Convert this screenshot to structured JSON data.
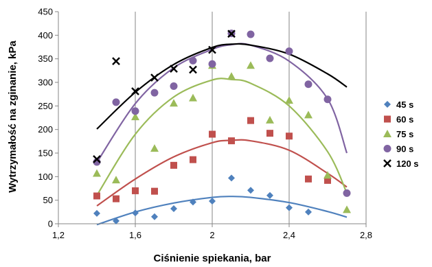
{
  "chart_data": {
    "type": "scatter",
    "xlabel": "Ciśnienie spiekania, bar",
    "ylabel": "Wytrzymałość na zginanie, kPa",
    "xlim": [
      1.2,
      2.8
    ],
    "ylim": [
      0,
      450
    ],
    "x_ticks": [
      "1,2",
      "1,6",
      "2",
      "2,4",
      "2,8"
    ],
    "x_tick_values": [
      1.2,
      1.6,
      2.0,
      2.4,
      2.8
    ],
    "y_ticks": [
      "0",
      "50",
      "100",
      "150",
      "200",
      "250",
      "300",
      "350",
      "400",
      "450"
    ],
    "y_tick_values": [
      0,
      50,
      100,
      150,
      200,
      250,
      300,
      350,
      400,
      450
    ],
    "grid": "vertical",
    "legend_position": "right",
    "series": [
      {
        "name": "45 s",
        "color": "#4f81bd",
        "marker": "diamond",
        "points": [
          [
            1.4,
            22
          ],
          [
            1.5,
            6
          ],
          [
            1.6,
            23
          ],
          [
            1.7,
            15
          ],
          [
            1.8,
            32
          ],
          [
            1.9,
            46
          ],
          [
            2.0,
            48
          ],
          [
            2.1,
            97
          ],
          [
            2.2,
            71
          ],
          [
            2.3,
            60
          ],
          [
            2.4,
            34
          ],
          [
            2.5,
            25
          ],
          [
            2.7,
            65
          ]
        ],
        "trend": {
          "x_range": [
            1.4,
            2.7
          ],
          "points": [
            [
              1.4,
              -2
            ],
            [
              1.6,
              25
            ],
            [
              1.8,
              44
            ],
            [
              2.0,
              56
            ],
            [
              2.1,
              58
            ],
            [
              2.2,
              56
            ],
            [
              2.4,
              45
            ],
            [
              2.6,
              26
            ],
            [
              2.7,
              14
            ]
          ]
        }
      },
      {
        "name": "60 s",
        "color": "#c0504d",
        "marker": "square",
        "points": [
          [
            1.4,
            59
          ],
          [
            1.5,
            53
          ],
          [
            1.6,
            70
          ],
          [
            1.7,
            69
          ],
          [
            1.8,
            124
          ],
          [
            1.9,
            136
          ],
          [
            2.0,
            190
          ],
          [
            2.1,
            176
          ],
          [
            2.2,
            219
          ],
          [
            2.3,
            192
          ],
          [
            2.4,
            186
          ],
          [
            2.5,
            95
          ],
          [
            2.6,
            92
          ]
        ],
        "trend": {
          "x_range": [
            1.4,
            2.7
          ],
          "points": [
            [
              1.4,
              38
            ],
            [
              1.6,
              95
            ],
            [
              1.8,
              142
            ],
            [
              2.0,
              172
            ],
            [
              2.1,
              177
            ],
            [
              2.2,
              176
            ],
            [
              2.4,
              156
            ],
            [
              2.6,
              107
            ],
            [
              2.7,
              78
            ]
          ]
        }
      },
      {
        "name": "75 s",
        "color": "#9bbb59",
        "marker": "triangle",
        "points": [
          [
            1.4,
            107
          ],
          [
            1.5,
            93
          ],
          [
            1.6,
            227
          ],
          [
            1.7,
            160
          ],
          [
            1.8,
            256
          ],
          [
            1.9,
            267
          ],
          [
            2.0,
            336
          ],
          [
            2.1,
            313
          ],
          [
            2.2,
            336
          ],
          [
            2.3,
            220
          ],
          [
            2.4,
            262
          ],
          [
            2.5,
            231
          ],
          [
            2.6,
            103
          ],
          [
            2.7,
            30
          ]
        ],
        "trend": {
          "x_range": [
            1.4,
            2.7
          ],
          "points": [
            [
              1.4,
              60
            ],
            [
              1.6,
              190
            ],
            [
              1.8,
              269
            ],
            [
              2.0,
              305
            ],
            [
              2.1,
              306
            ],
            [
              2.2,
              298
            ],
            [
              2.4,
              250
            ],
            [
              2.6,
              153
            ],
            [
              2.7,
              65
            ]
          ]
        }
      },
      {
        "name": "90 s",
        "color": "#8064a2",
        "marker": "circle",
        "points": [
          [
            1.4,
            131
          ],
          [
            1.5,
            258
          ],
          [
            1.6,
            239
          ],
          [
            1.7,
            278
          ],
          [
            1.8,
            292
          ],
          [
            1.9,
            346
          ],
          [
            2.0,
            339
          ],
          [
            2.1,
            404
          ],
          [
            2.2,
            402
          ],
          [
            2.3,
            351
          ],
          [
            2.4,
            366
          ],
          [
            2.5,
            296
          ],
          [
            2.6,
            264
          ],
          [
            2.7,
            65
          ]
        ],
        "trend": {
          "x_range": [
            1.4,
            2.7
          ],
          "points": [
            [
              1.4,
              130
            ],
            [
              1.6,
              255
            ],
            [
              1.8,
              331
            ],
            [
              2.0,
              370
            ],
            [
              2.1,
              380
            ],
            [
              2.2,
              379
            ],
            [
              2.4,
              345
            ],
            [
              2.6,
              265
            ],
            [
              2.7,
              150
            ]
          ]
        }
      },
      {
        "name": "120 s",
        "color": "#000000",
        "marker": "x",
        "points": [
          [
            1.4,
            137
          ],
          [
            1.5,
            345
          ],
          [
            1.6,
            281
          ],
          [
            1.7,
            310
          ],
          [
            1.8,
            329
          ],
          [
            1.9,
            327
          ],
          [
            2.0,
            369
          ],
          [
            2.1,
            403
          ]
        ],
        "trend": {
          "x_range": [
            1.4,
            2.7
          ],
          "points": [
            [
              1.4,
              201
            ],
            [
              1.6,
              279
            ],
            [
              1.8,
              338
            ],
            [
              2.0,
              374
            ],
            [
              2.1,
              381
            ],
            [
              2.2,
              379
            ],
            [
              2.4,
              360
            ],
            [
              2.6,
              318
            ],
            [
              2.7,
              290
            ]
          ]
        }
      }
    ]
  }
}
